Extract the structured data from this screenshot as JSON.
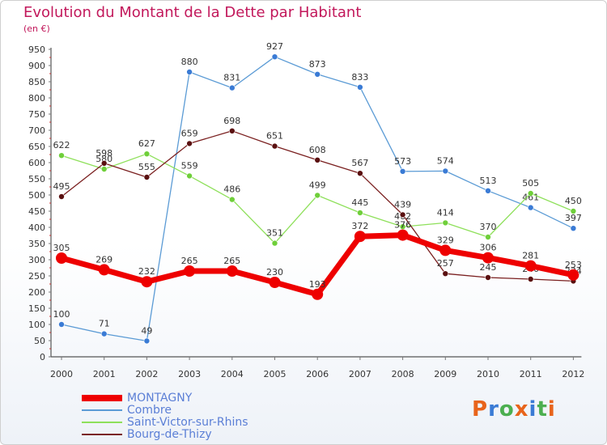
{
  "title": "Evolution du Montant de la Dette par Habitant",
  "subtitle": "(en €)",
  "logo": {
    "text": "Proxiti",
    "colors": [
      "#e8641b",
      "#3a7bd5",
      "#4caf50",
      "#e8641b",
      "#3a7bd5",
      "#4caf50",
      "#e8641b"
    ]
  },
  "chart_data": {
    "type": "line",
    "x": [
      "2000",
      "2001",
      "2002",
      "2003",
      "2004",
      "2005",
      "2006",
      "2007",
      "2008",
      "2009",
      "2010",
      "2011",
      "2012"
    ],
    "ylim": [
      0,
      950
    ],
    "yticks": [
      0,
      50,
      100,
      150,
      200,
      250,
      300,
      350,
      400,
      450,
      500,
      550,
      600,
      650,
      700,
      750,
      800,
      850,
      900,
      950
    ],
    "grid": false,
    "legend_position": "bottom-left",
    "series": [
      {
        "name": "Combre",
        "color": "#5b9bd5",
        "values": [
          100,
          71,
          49,
          880,
          831,
          927,
          873,
          833,
          573,
          574,
          513,
          461,
          397
        ]
      },
      {
        "name": "Saint-Victor-sur-Rhins",
        "color": "#8ee05a",
        "values": [
          622,
          580,
          627,
          559,
          486,
          351,
          499,
          445,
          402,
          414,
          370,
          505,
          450
        ]
      },
      {
        "name": "Bourg-de-Thizy",
        "color": "#7a1f1f",
        "values": [
          495,
          598,
          555,
          659,
          698,
          651,
          608,
          567,
          439,
          257,
          245,
          240,
          234
        ]
      },
      {
        "name": "MONTAGNY",
        "color": "#ee0000",
        "values": [
          305,
          269,
          232,
          265,
          265,
          230,
          193,
          372,
          376,
          329,
          306,
          281,
          253
        ]
      }
    ]
  }
}
